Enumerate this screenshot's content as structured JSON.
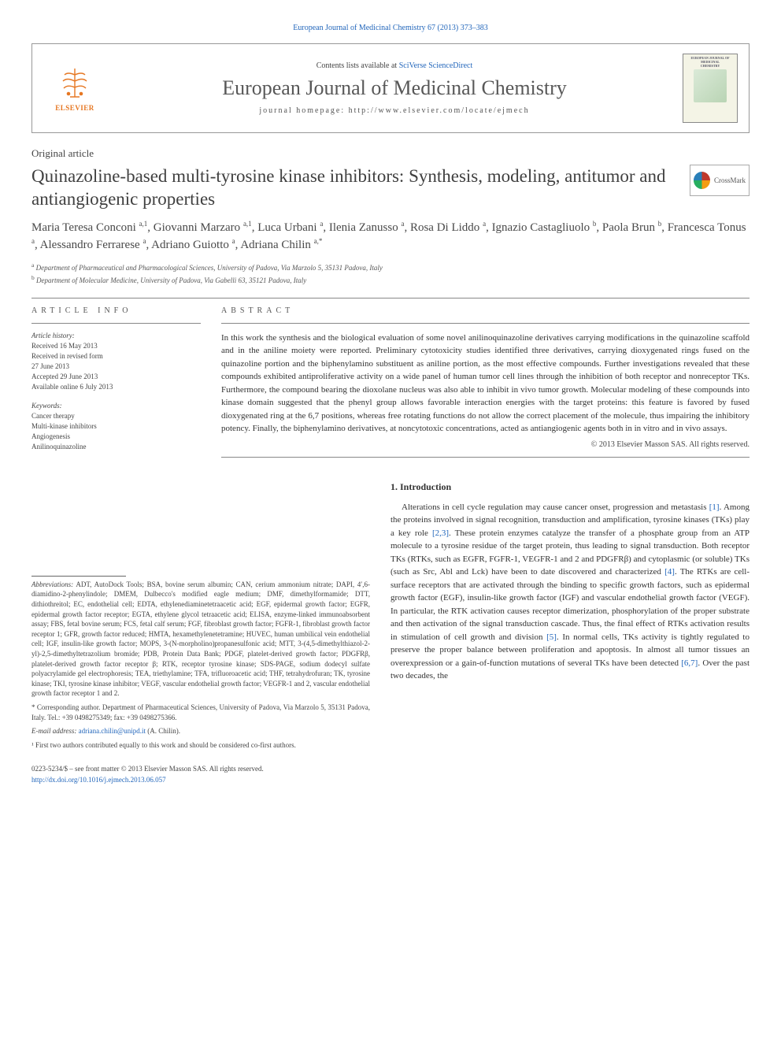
{
  "top_citation": "European Journal of Medicinal Chemistry 67 (2013) 373–383",
  "header": {
    "contents_prefix": "Contents lists available at ",
    "contents_link": "SciVerse ScienceDirect",
    "journal": "European Journal of Medicinal Chemistry",
    "homepage": "journal homepage: http://www.elsevier.com/locate/ejmech",
    "publisher": "ELSEVIER"
  },
  "article_type": "Original article",
  "title": "Quinazoline-based multi-tyrosine kinase inhibitors: Synthesis, modeling, antitumor and antiangiogenic properties",
  "crossmark": "CrossMark",
  "authors_html": "Maria Teresa Conconi <sup>a,1</sup>, Giovanni Marzaro <sup>a,1</sup>, Luca Urbani <sup>a</sup>, Ilenia Zanusso <sup>a</sup>, Rosa Di Liddo <sup>a</sup>, Ignazio Castagliuolo <sup>b</sup>, Paola Brun <sup>b</sup>, Francesca Tonus <sup>a</sup>, Alessandro Ferrarese <sup>a</sup>, Adriano Guiotto <sup>a</sup>, Adriana Chilin <sup>a,*</sup>",
  "affiliations": {
    "a": "Department of Pharmaceutical and Pharmacological Sciences, University of Padova, Via Marzolo 5, 35131 Padova, Italy",
    "b": "Department of Molecular Medicine, University of Padova, Via Gabelli 63, 35121 Padova, Italy"
  },
  "article_info": {
    "heading": "ARTICLE INFO",
    "history_label": "Article history:",
    "history": [
      "Received 16 May 2013",
      "Received in revised form",
      "27 June 2013",
      "Accepted 29 June 2013",
      "Available online 6 July 2013"
    ],
    "keywords_label": "Keywords:",
    "keywords": [
      "Cancer therapy",
      "Multi-kinase inhibitors",
      "Angiogenesis",
      "Anilinoquinazoline"
    ]
  },
  "abstract": {
    "heading": "ABSTRACT",
    "text": "In this work the synthesis and the biological evaluation of some novel anilinoquinazoline derivatives carrying modifications in the quinazoline scaffold and in the aniline moiety were reported. Preliminary cytotoxicity studies identified three derivatives, carrying dioxygenated rings fused on the quinazoline portion and the biphenylamino substituent as aniline portion, as the most effective compounds. Further investigations revealed that these compounds exhibited antiproliferative activity on a wide panel of human tumor cell lines through the inhibition of both receptor and nonreceptor TKs. Furthermore, the compound bearing the dioxolane nucleus was also able to inhibit in vivo tumor growth. Molecular modeling of these compounds into kinase domain suggested that the phenyl group allows favorable interaction energies with the target proteins: this feature is favored by fused dioxygenated ring at the 6,7 positions, whereas free rotating functions do not allow the correct placement of the molecule, thus impairing the inhibitory potency. Finally, the biphenylamino derivatives, at noncytotoxic concentrations, acted as antiangiogenic agents both in in vitro and in vivo assays.",
    "copyright": "© 2013 Elsevier Masson SAS. All rights reserved."
  },
  "footnotes": {
    "abbrev_label": "Abbreviations:",
    "abbrev": " ADT, AutoDock Tools; BSA, bovine serum albumin; CAN, cerium ammonium nitrate; DAPI, 4′,6-diamidino-2-phenylindole; DMEM, Dulbecco's modified eagle medium; DMF, dimethylformamide; DTT, dithiothreitol; EC, endothelial cell; EDTA, ethylenediaminetetraacetic acid; EGF, epidermal growth factor; EGFR, epidermal growth factor receptor; EGTA, ethylene glycol tetraacetic acid; ELISA, enzyme-linked immunoabsorbent assay; FBS, fetal bovine serum; FCS, fetal calf serum; FGF, fibroblast growth factor; FGFR-1, fibroblast growth factor receptor 1; GFR, growth factor reduced; HMTA, hexamethylenetetramine; HUVEC, human umbilical vein endothelial cell; IGF, insulin-like growth factor; MOPS, 3-(N-morpholino)propanesulfonic acid; MTT, 3-(4,5-dimethylthiazol-2-yl)-2,5-dimethyltetrazolium bromide; PDB, Protein Data Bank; PDGF, platelet-derived growth factor; PDGFRβ, platelet-derived growth factor receptor β; RTK, receptor tyrosine kinase; SDS-PAGE, sodium dodecyl sulfate polyacrylamide gel electrophoresis; TEA, triethylamine; TFA, trifluoroacetic acid; THF, tetrahydrofuran; TK, tyrosine kinase; TKI, tyrosine kinase inhibitor; VEGF, vascular endothelial growth factor; VEGFR-1 and 2, vascular endothelial growth factor receptor 1 and 2.",
    "corr": "* Corresponding author. Department of Pharmaceutical Sciences, University of Padova, Via Marzolo 5, 35131 Padova, Italy. Tel.: +39 0498275349; fax: +39 0498275366.",
    "email_label": "E-mail address:",
    "email": "adriana.chilin@unipd.it",
    "email_who": "(A. Chilin).",
    "cofirst": "¹ First two authors contributed equally to this work and should be considered co-first authors."
  },
  "intro": {
    "heading": "1. Introduction",
    "text": "Alterations in cell cycle regulation may cause cancer onset, progression and metastasis [1]. Among the proteins involved in signal recognition, transduction and amplification, tyrosine kinases (TKs) play a key role [2,3]. These protein enzymes catalyze the transfer of a phosphate group from an ATP molecule to a tyrosine residue of the target protein, thus leading to signal transduction. Both receptor TKs (RTKs, such as EGFR, FGFR-1, VEGFR-1 and 2 and PDGFRβ) and cytoplasmic (or soluble) TKs (such as Src, Abl and Lck) have been to date discovered and characterized [4]. The RTKs are cell-surface receptors that are activated through the binding to specific growth factors, such as epidermal growth factor (EGF), insulin-like growth factor (IGF) and vascular endothelial growth factor (VEGF). In particular, the RTK activation causes receptor dimerization, phosphorylation of the proper substrate and then activation of the signal transduction cascade. Thus, the final effect of RTKs activation results in stimulation of cell growth and division [5]. In normal cells, TKs activity is tightly regulated to preserve the proper balance between proliferation and apoptosis. In almost all tumor tissues an overexpression or a gain-of-function mutations of several TKs have been detected [6,7]. Over the past two decades, the"
  },
  "bottom": {
    "issn": "0223-5234/$ – see front matter © 2013 Elsevier Masson SAS. All rights reserved.",
    "doi": "http://dx.doi.org/10.1016/j.ejmech.2013.06.057"
  },
  "colors": {
    "link": "#2266bb",
    "text": "#2a2a2a",
    "heading_gray": "#555555",
    "elsevier_orange": "#e67722"
  }
}
